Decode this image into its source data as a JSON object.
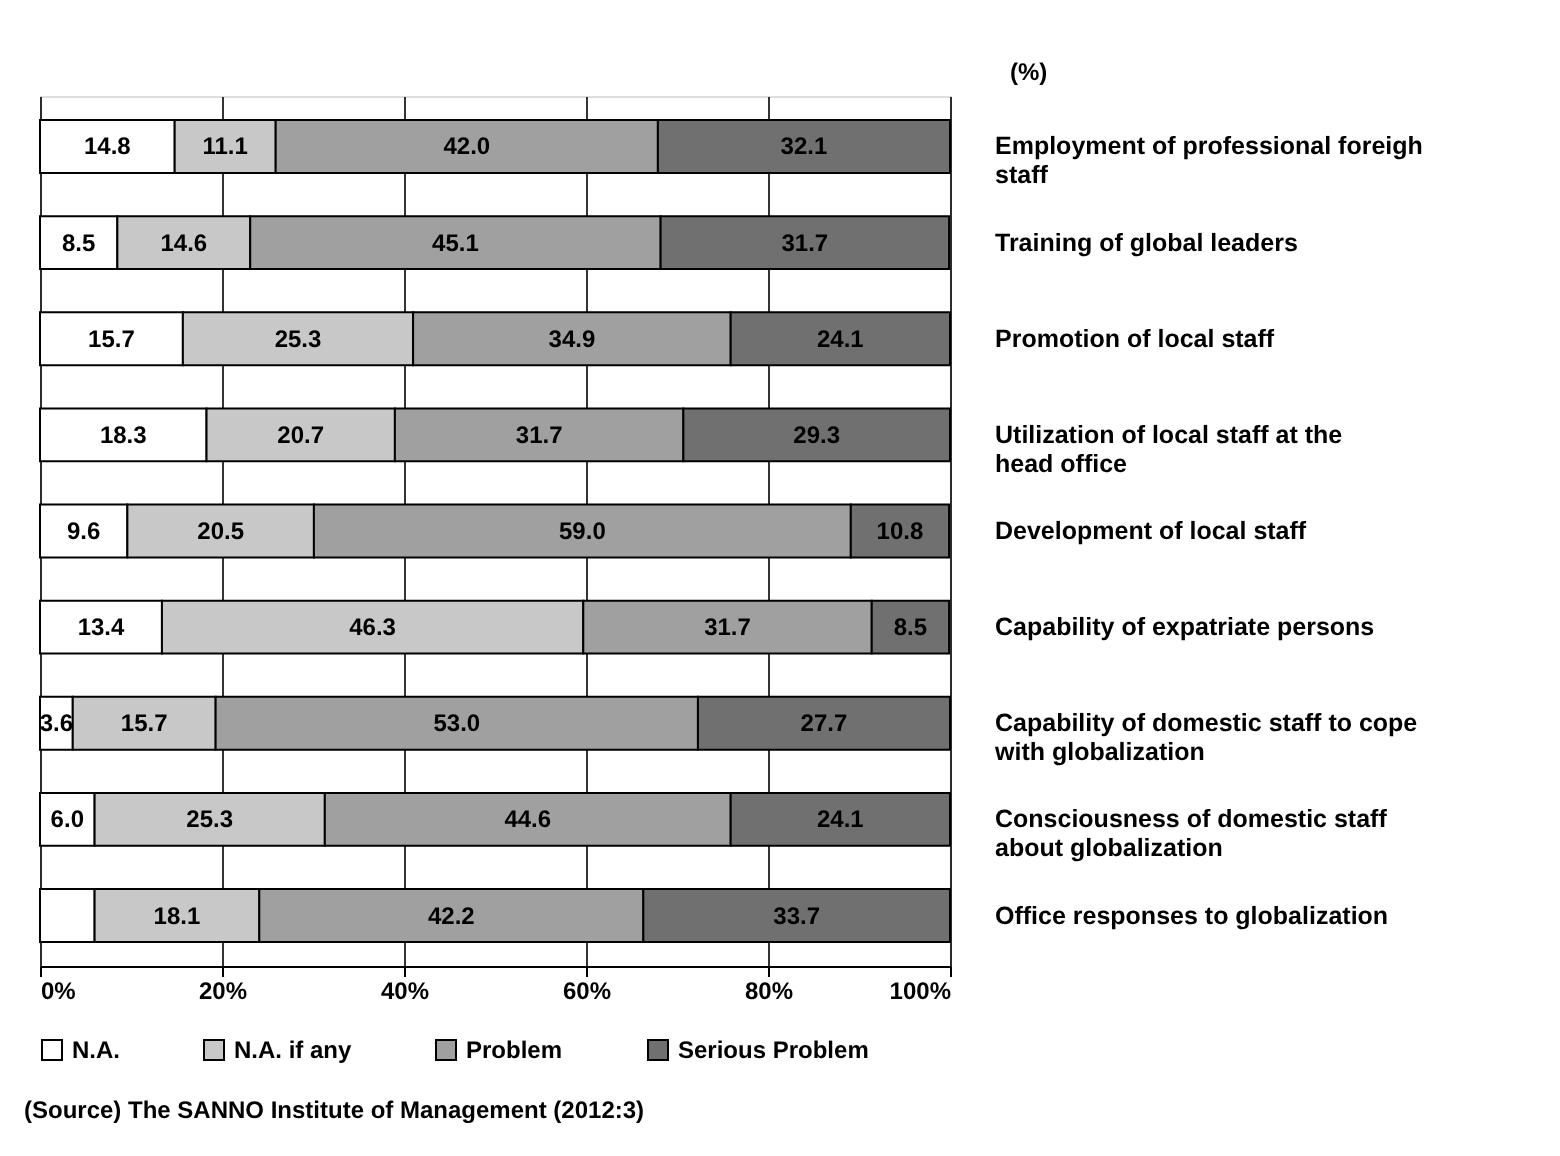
{
  "chart_data": {
    "type": "bar",
    "orientation": "horizontal",
    "stacked": true,
    "categories": [
      "Employment of professional foreigh staff",
      "Training of global leaders",
      "Promotion of local staff",
      "Utilization of local staff at the head office",
      "Development of local staff",
      "Capability of expatriate persons",
      "Capability of domestic staff to cope with globalization",
      "Consciousness of domestic staff about globalization",
      "Office responses to globalization"
    ],
    "series": [
      {
        "name": "N.A.",
        "color": "#ffffff",
        "values": [
          14.8,
          8.5,
          15.7,
          18.3,
          9.6,
          13.4,
          3.6,
          6.0,
          6.0
        ],
        "value_labels": [
          "14.8",
          "8.5",
          "15.7",
          "18.3",
          "9.6",
          "13.4",
          "3.6",
          "6.0",
          null
        ]
      },
      {
        "name": "N.A. if any",
        "color": "#c8c8c8",
        "values": [
          11.1,
          14.6,
          25.3,
          20.7,
          20.5,
          46.3,
          15.7,
          25.3,
          18.1
        ],
        "value_labels": [
          "11.1",
          "14.6",
          "25.3",
          "20.7",
          "20.5",
          "46.3",
          "15.7",
          "25.3",
          "18.1"
        ]
      },
      {
        "name": "Problem",
        "color": "#a0a0a0",
        "values": [
          42.0,
          45.1,
          34.9,
          31.7,
          59.0,
          31.7,
          53.0,
          44.6,
          42.2
        ],
        "value_labels": [
          "42.0",
          "45.1",
          "34.9",
          "31.7",
          "59.0",
          "31.7",
          "53.0",
          "44.6",
          "42.2"
        ]
      },
      {
        "name": "Serious Problem",
        "color": "#707070",
        "values": [
          32.1,
          31.7,
          24.1,
          29.3,
          10.8,
          8.5,
          27.7,
          24.1,
          33.7
        ],
        "value_labels": [
          "32.1",
          "31.7",
          "24.1",
          "29.3",
          "10.8",
          "8.5",
          "27.7",
          "24.1",
          "33.7"
        ]
      }
    ],
    "xlim": [
      0,
      100
    ],
    "xticks": [
      {
        "value": 0,
        "label": "0%"
      },
      {
        "value": 20,
        "label": "20%"
      },
      {
        "value": 40,
        "label": "40%"
      },
      {
        "value": 60,
        "label": "60%"
      },
      {
        "value": 80,
        "label": "80%"
      },
      {
        "value": 100,
        "label": "100%"
      }
    ],
    "grid": "x",
    "legend": "bottom",
    "annotations": [
      "(%)",
      "(Source) The SANNO Institute of Management (2012:3)"
    ]
  }
}
